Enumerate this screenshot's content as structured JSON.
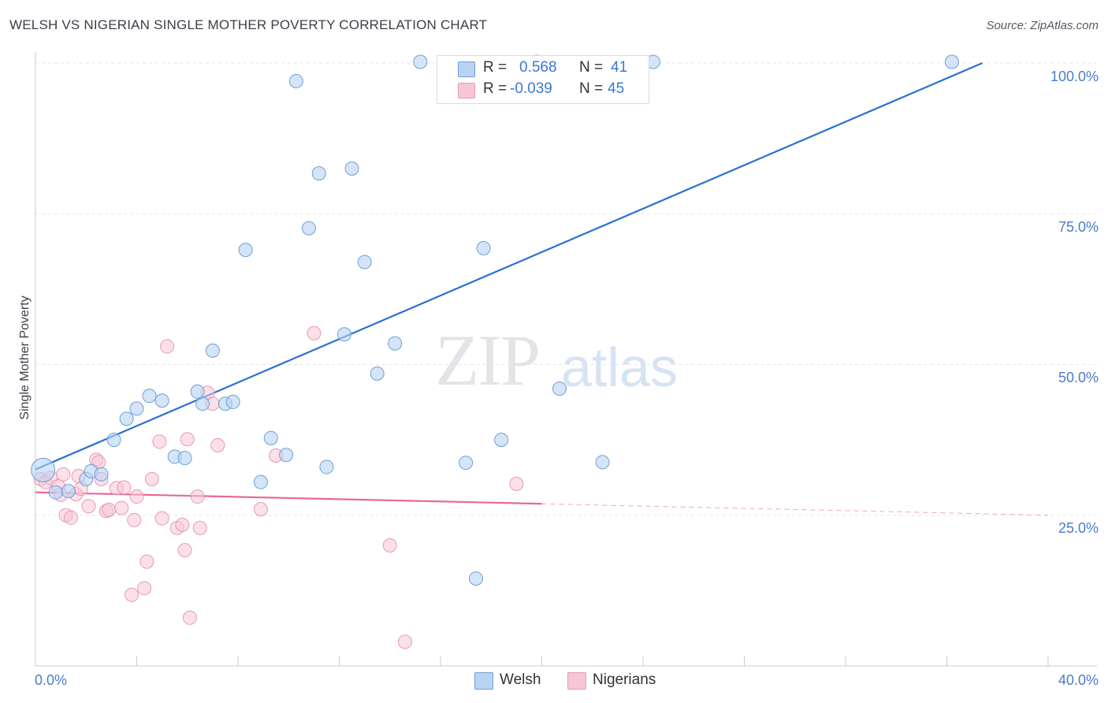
{
  "title": "WELSH VS NIGERIAN SINGLE MOTHER POVERTY CORRELATION CHART",
  "source": "Source: ZipAtlas.com",
  "watermark": {
    "zip": "ZIP",
    "atlas": "atlas"
  },
  "colors": {
    "welsh_fill": "#b8d3f2",
    "welsh_stroke": "#6f9fd8",
    "welsh_line": "#2b6fd0",
    "nigerian_fill": "#f7c6d6",
    "nigerian_stroke": "#e59ab4",
    "nigerian_line": "#e8679a"
  },
  "legend": {
    "welsh": {
      "r_label": "R =",
      "r_value": "0.568",
      "n_label": "N =",
      "n_value": "41"
    },
    "nigerians": {
      "r_label": "R =",
      "r_value": "-0.039",
      "n_label": "N =",
      "n_value": "45"
    }
  },
  "bottom_legend": {
    "welsh": "Welsh",
    "nigerians": "Nigerians"
  },
  "chart_data": {
    "type": "scatter",
    "title": "WELSH VS NIGERIAN SINGLE MOTHER POVERTY CORRELATION CHART",
    "xlabel": "",
    "ylabel": "Single Mother Poverty",
    "xlim": [
      0,
      40
    ],
    "ylim": [
      0,
      100
    ],
    "x_tick_labels": {
      "min": "0.0%",
      "max": "40.0%"
    },
    "y_tick_labels": [
      "100.0%",
      "75.0%",
      "50.0%",
      "25.0%"
    ],
    "series": [
      {
        "name": "Welsh",
        "points": [
          [
            0.3,
            32.5
          ],
          [
            0.8,
            28.8
          ],
          [
            1.3,
            29.0
          ],
          [
            2.0,
            31.0
          ],
          [
            2.2,
            32.3
          ],
          [
            2.6,
            31.8
          ],
          [
            3.1,
            37.5
          ],
          [
            3.6,
            41.0
          ],
          [
            4.0,
            42.7
          ],
          [
            4.5,
            44.8
          ],
          [
            5.0,
            44.0
          ],
          [
            5.5,
            34.7
          ],
          [
            5.9,
            34.5
          ],
          [
            6.4,
            45.5
          ],
          [
            6.6,
            43.5
          ],
          [
            7.0,
            52.3
          ],
          [
            7.5,
            43.5
          ],
          [
            7.8,
            43.8
          ],
          [
            8.3,
            69.0
          ],
          [
            8.9,
            30.5
          ],
          [
            9.3,
            37.8
          ],
          [
            9.9,
            35.0
          ],
          [
            10.3,
            97.0
          ],
          [
            10.8,
            72.6
          ],
          [
            11.2,
            81.7
          ],
          [
            11.5,
            33.0
          ],
          [
            12.2,
            55.0
          ],
          [
            12.5,
            82.5
          ],
          [
            13.0,
            67.0
          ],
          [
            13.5,
            48.5
          ],
          [
            14.2,
            53.5
          ],
          [
            15.2,
            100.2
          ],
          [
            17.0,
            33.7
          ],
          [
            17.4,
            14.5
          ],
          [
            17.7,
            69.3
          ],
          [
            18.4,
            37.5
          ],
          [
            19.8,
            100.2
          ],
          [
            20.7,
            46.0
          ],
          [
            22.4,
            33.8
          ],
          [
            24.4,
            100.2
          ],
          [
            36.2,
            100.2
          ]
        ],
        "trend": {
          "x_start": 0,
          "y_start": 32.6,
          "x_end": 37.4,
          "y_end": 100.0
        }
      },
      {
        "name": "Nigerians",
        "points": [
          [
            0.2,
            31.0
          ],
          [
            0.4,
            30.5
          ],
          [
            0.6,
            31.2
          ],
          [
            0.9,
            29.8
          ],
          [
            1.0,
            28.4
          ],
          [
            1.1,
            31.8
          ],
          [
            1.2,
            25.0
          ],
          [
            1.4,
            24.6
          ],
          [
            1.6,
            28.5
          ],
          [
            1.7,
            31.5
          ],
          [
            1.8,
            29.4
          ],
          [
            2.1,
            26.5
          ],
          [
            2.4,
            34.2
          ],
          [
            2.5,
            33.8
          ],
          [
            2.6,
            31.0
          ],
          [
            2.8,
            25.7
          ],
          [
            2.9,
            25.9
          ],
          [
            3.2,
            29.5
          ],
          [
            3.4,
            26.2
          ],
          [
            3.5,
            29.6
          ],
          [
            3.8,
            11.8
          ],
          [
            3.9,
            24.2
          ],
          [
            4.0,
            28.1
          ],
          [
            4.3,
            12.9
          ],
          [
            4.4,
            17.3
          ],
          [
            4.6,
            31.0
          ],
          [
            4.9,
            37.2
          ],
          [
            5.0,
            24.5
          ],
          [
            5.2,
            53.0
          ],
          [
            5.6,
            22.9
          ],
          [
            5.8,
            23.4
          ],
          [
            5.9,
            19.2
          ],
          [
            6.0,
            37.6
          ],
          [
            6.1,
            8.0
          ],
          [
            6.4,
            28.1
          ],
          [
            6.5,
            22.9
          ],
          [
            6.8,
            45.3
          ],
          [
            7.0,
            43.5
          ],
          [
            7.2,
            36.6
          ],
          [
            8.9,
            26.0
          ],
          [
            9.5,
            34.9
          ],
          [
            11.0,
            55.2
          ],
          [
            14.0,
            20.0
          ],
          [
            14.6,
            4.0
          ],
          [
            19.0,
            30.2
          ]
        ],
        "trend": {
          "x_start": 0,
          "y_start": 28.8,
          "x_end": 20.0,
          "y_end": 26.9,
          "dashed_to_x": 40,
          "dashed_to_y": 25.0
        }
      }
    ]
  }
}
